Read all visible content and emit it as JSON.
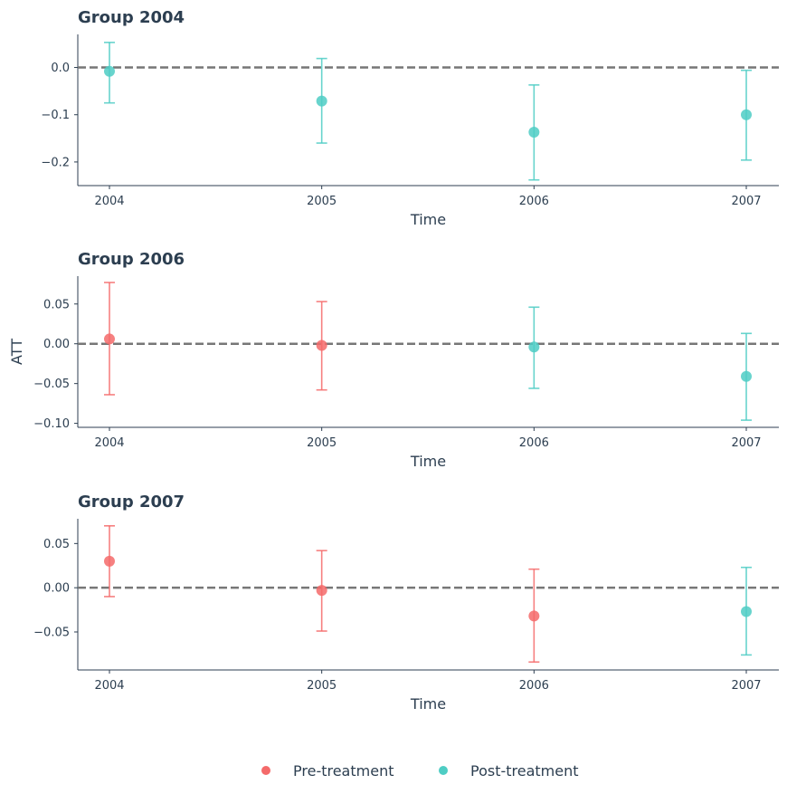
{
  "colors": {
    "pre": "#f46a6a",
    "post": "#4ecdc4",
    "axis": "#2c3e50",
    "zero": "#777777"
  },
  "legend": {
    "pre_label": "Pre-treatment",
    "post_label": "Post-treatment",
    "placement": "bottom-center"
  },
  "chart_data": [
    {
      "type": "scatter",
      "title": "Group 2004",
      "xlabel": "Time",
      "ylabel": "",
      "x": [
        2004,
        2005,
        2006,
        2007
      ],
      "ylim": [
        -0.25,
        0.07
      ],
      "yticks": [
        0.0,
        -0.1,
        -0.2
      ],
      "ytick_labels": [
        "0.0",
        "−0.1",
        "−0.2"
      ],
      "xtick_labels": [
        "2004",
        "2005",
        "2006",
        "2007"
      ],
      "points": [
        {
          "x": 2004,
          "y": -0.008,
          "lo": -0.075,
          "hi": 0.053,
          "period": "post"
        },
        {
          "x": 2005,
          "y": -0.071,
          "lo": -0.16,
          "hi": 0.019,
          "period": "post"
        },
        {
          "x": 2006,
          "y": -0.137,
          "lo": -0.238,
          "hi": -0.037,
          "period": "post"
        },
        {
          "x": 2007,
          "y": -0.1,
          "lo": -0.196,
          "hi": -0.006,
          "period": "post"
        }
      ]
    },
    {
      "type": "scatter",
      "title": "Group 2006",
      "xlabel": "Time",
      "ylabel": "ATT",
      "x": [
        2004,
        2005,
        2006,
        2007
      ],
      "ylim": [
        -0.105,
        0.085
      ],
      "yticks": [
        0.05,
        0.0,
        -0.05,
        -0.1
      ],
      "ytick_labels": [
        "0.05",
        "0.00",
        "−0.05",
        "−0.10"
      ],
      "xtick_labels": [
        "2004",
        "2005",
        "2006",
        "2007"
      ],
      "points": [
        {
          "x": 2004,
          "y": 0.006,
          "lo": -0.064,
          "hi": 0.077,
          "period": "pre"
        },
        {
          "x": 2005,
          "y": -0.002,
          "lo": -0.058,
          "hi": 0.053,
          "period": "pre"
        },
        {
          "x": 2006,
          "y": -0.004,
          "lo": -0.056,
          "hi": 0.046,
          "period": "post"
        },
        {
          "x": 2007,
          "y": -0.041,
          "lo": -0.096,
          "hi": 0.013,
          "period": "post"
        }
      ]
    },
    {
      "type": "scatter",
      "title": "Group 2007",
      "xlabel": "Time",
      "ylabel": "",
      "x": [
        2004,
        2005,
        2006,
        2007
      ],
      "ylim": [
        -0.093,
        0.078
      ],
      "yticks": [
        0.05,
        0.0,
        -0.05
      ],
      "ytick_labels": [
        "0.05",
        "0.00",
        "−0.05"
      ],
      "xtick_labels": [
        "2004",
        "2005",
        "2006",
        "2007"
      ],
      "points": [
        {
          "x": 2004,
          "y": 0.03,
          "lo": -0.01,
          "hi": 0.07,
          "period": "pre"
        },
        {
          "x": 2005,
          "y": -0.003,
          "lo": -0.049,
          "hi": 0.042,
          "period": "pre"
        },
        {
          "x": 2006,
          "y": -0.032,
          "lo": -0.084,
          "hi": 0.021,
          "period": "pre"
        },
        {
          "x": 2007,
          "y": -0.027,
          "lo": -0.076,
          "hi": 0.023,
          "period": "post"
        }
      ]
    }
  ]
}
